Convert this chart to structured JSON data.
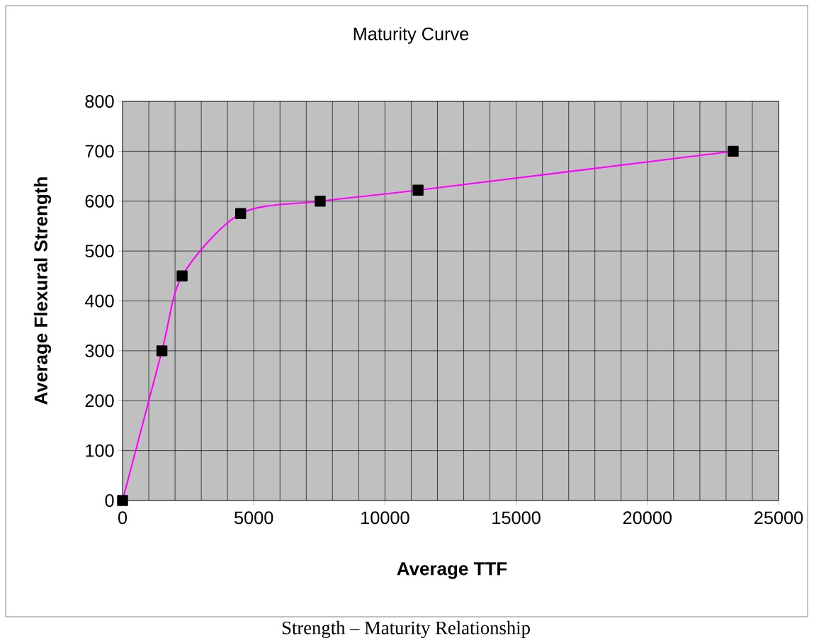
{
  "chart_data": {
    "type": "line",
    "title": "Maturity Curve",
    "xlabel": "Average TTF",
    "ylabel": "Average Flexural Strength",
    "annotations": [
      "Strength – Maturity Relationship"
    ],
    "x": [
      0,
      1500,
      2270,
      4500,
      7530,
      11260,
      23270
    ],
    "series": [
      {
        "color": "#ff00ff",
        "values": [
          0,
          300,
          450,
          575,
          600,
          622,
          700
        ]
      }
    ],
    "xlim": [
      0,
      25000
    ],
    "ylim": [
      0,
      800
    ],
    "xticks": [
      0,
      5000,
      10000,
      15000,
      20000,
      25000
    ],
    "yticks": [
      0,
      100,
      200,
      300,
      400,
      500,
      600,
      700,
      800
    ],
    "grid": true,
    "marker": "square",
    "line_style": "solid"
  }
}
